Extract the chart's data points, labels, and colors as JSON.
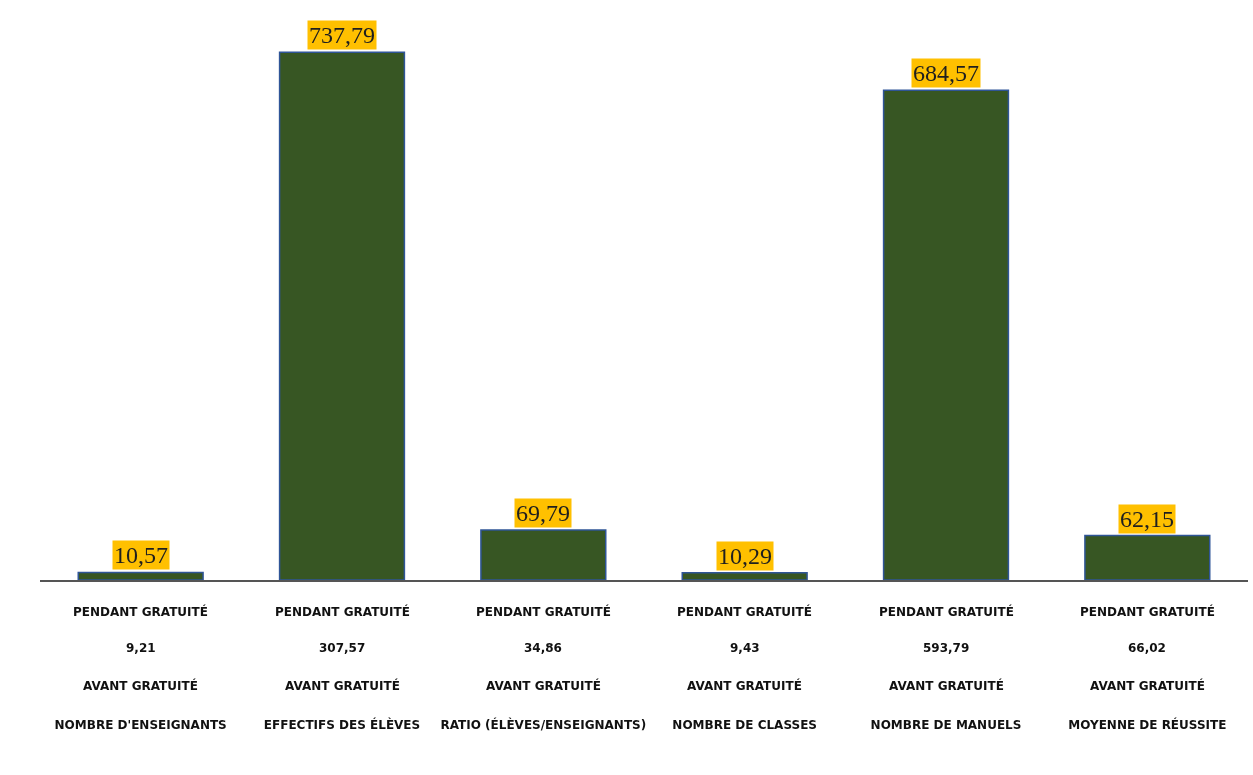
{
  "chart_data": {
    "type": "bar",
    "categories": [
      "NOMBRE D'ENSEIGNANTS",
      "EFFECTIFS DES ÉLÈVES",
      "RATIO (ÉLÈVES/ENSEIGNANTS)",
      "NOMBRE DE CLASSES",
      "NOMBRE DE MANUELS",
      "MOYENNE DE RÉUSSITE"
    ],
    "values": [
      10.57,
      737.79,
      69.79,
      10.29,
      684.57,
      62.15
    ],
    "value_labels": [
      "10,57",
      "737,79",
      "69,79",
      "10,29",
      "684,57",
      "62,15"
    ],
    "color": "#375623",
    "grid": false,
    "legend": false,
    "annotations": [
      "PENDANT GRATUITÉ",
      "PENDANT GRATUITÉ",
      "PENDANT GRATUITÉ",
      "PENDANT GRATUITÉ",
      "PENDANT GRATUITÉ",
      "PENDANT GRATUITÉ",
      "9,21",
      "307,57",
      "34,86",
      "9,43",
      "593,79",
      "66,02",
      "AVANT GRATUITÉ",
      "AVANT GRATUITÉ",
      "AVANT GRATUITÉ",
      "AVANT GRATUITÉ",
      "AVANT GRATUITÉ",
      "AVANT GRATUITÉ"
    ]
  }
}
